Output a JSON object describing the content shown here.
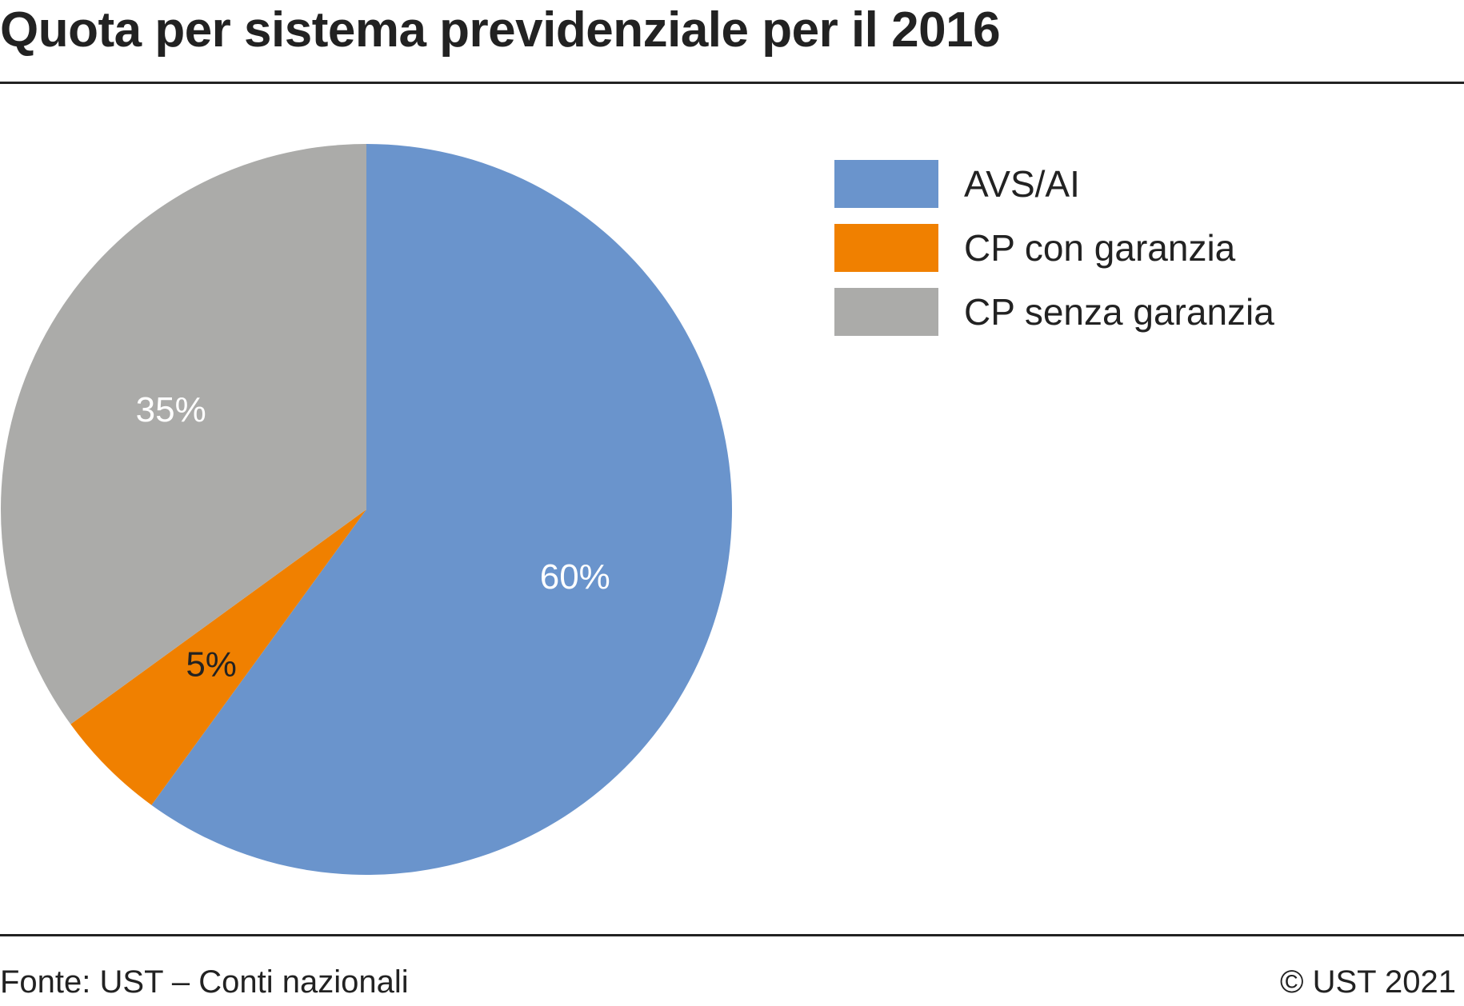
{
  "chart_data": {
    "type": "pie",
    "title": "Quota per sistema previdenziale per il 2016",
    "slices": [
      {
        "label": "AVS/AI",
        "value": 60,
        "value_label": "60%",
        "color": "#6a94cc",
        "label_color": "#ffffff"
      },
      {
        "label": "CP con garanzia",
        "value": 5,
        "value_label": "5%",
        "color": "#f08000",
        "label_color": "#222222"
      },
      {
        "label": "CP senza garanzia",
        "value": 35,
        "value_label": "35%",
        "color": "#ababa9",
        "label_color": "#ffffff"
      }
    ],
    "start_angle": "top",
    "direction": "clockwise",
    "legend_placement": "top-right",
    "source": "Fonte: UST – Conti nazionali",
    "copyright": "© UST 2021"
  }
}
